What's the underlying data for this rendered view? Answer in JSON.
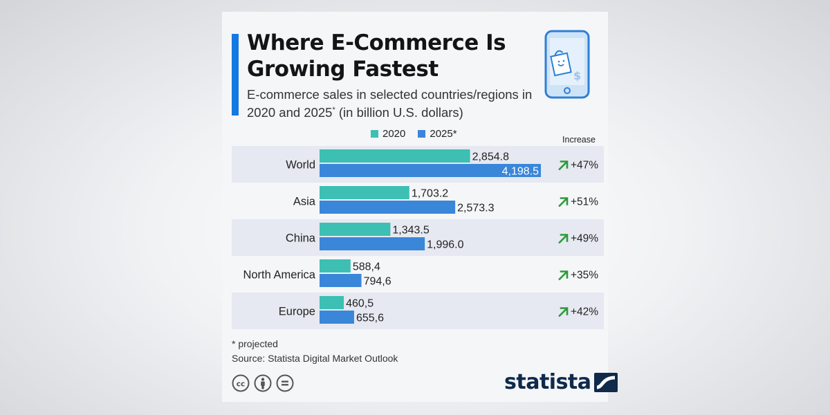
{
  "header": {
    "title": "Where E-Commerce Is Growing Fastest",
    "subtitle": "E-commerce sales in selected countries/regions in 2020 and 2025* (in billion U.S. dollars)"
  },
  "icons": {
    "header": "smartphone-shopping-bag-icon",
    "up": "arrow-up-right-icon"
  },
  "increase_header": "Increase",
  "chart_data": {
    "type": "bar",
    "orientation": "horizontal",
    "categories": [
      "World",
      "Asia",
      "China",
      "North America",
      "Europe"
    ],
    "series": [
      {
        "name": "2020",
        "color": "#3dbfb3",
        "values": [
          2854.8,
          1703.2,
          1343.5,
          588.4,
          460.5
        ],
        "labels": [
          "2,854.8",
          "1,703.2",
          "1,343.5",
          "588,4",
          "460,5"
        ]
      },
      {
        "name": "2025*",
        "color": "#3a86d9",
        "values": [
          4198.5,
          2573.3,
          1996.0,
          794.6,
          655.6
        ],
        "labels": [
          "4,198.5",
          "2,573.3",
          "1,996.0",
          "794,6",
          "655,6"
        ]
      }
    ],
    "increase": [
      "+47%",
      "+51%",
      "+49%",
      "+35%",
      "+42%"
    ],
    "xlim": [
      0,
      4198.5
    ],
    "grid": false,
    "legend": "top",
    "row_band_colors": [
      "#e6e9f1",
      "#f5f6f8"
    ],
    "increase_arrow_color": "#2a9a3a"
  },
  "footnotes": {
    "projected": "* projected",
    "source": "Source: Statista Digital Market Outlook"
  },
  "brand": {
    "name": "statista",
    "color": "#0f2a4a"
  },
  "license_icons": [
    "creative-commons-icon",
    "attribution-icon",
    "no-derivatives-icon"
  ]
}
